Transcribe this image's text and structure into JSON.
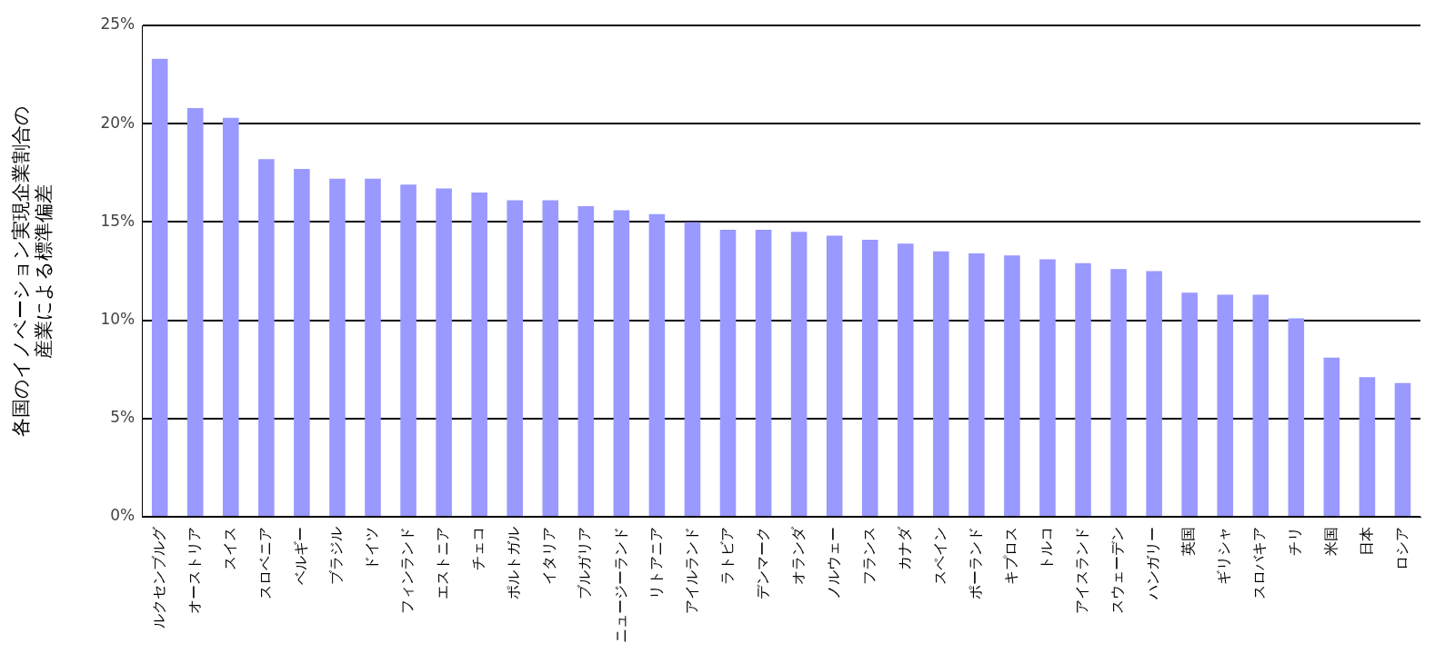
{
  "chart_data": {
    "type": "bar",
    "ylabel": "各国のイノベーション実現企業割合の産業による標準偏差",
    "categories": [
      "ルクセンブルグ",
      "オーストリア",
      "スイス",
      "スロベニア",
      "ベルギー",
      "ブラジル",
      "ドイツ",
      "フィンランド",
      "エストニア",
      "チェコ",
      "ポルトガル",
      "イタリア",
      "ブルガリア",
      "ニュージーランド",
      "リトアニア",
      "アイルランド",
      "ラトビア",
      "デンマーク",
      "オランダ",
      "ノルウェー",
      "フランス",
      "カナダ",
      "スペイン",
      "ポーランド",
      "キプロス",
      "トルコ",
      "アイスランド",
      "スウェーデン",
      "ハンガリー",
      "英国",
      "ギリシャ",
      "スロバキア",
      "チリ",
      "米国",
      "日本",
      "ロシア"
    ],
    "values": [
      23.3,
      20.8,
      20.3,
      18.2,
      17.7,
      17.2,
      17.2,
      16.9,
      16.7,
      16.5,
      16.1,
      16.1,
      15.8,
      15.6,
      15.4,
      15.0,
      14.6,
      14.6,
      14.5,
      14.3,
      14.1,
      13.9,
      13.5,
      13.4,
      13.3,
      13.1,
      12.9,
      12.6,
      12.5,
      11.4,
      11.3,
      11.3,
      10.1,
      8.1,
      7.1,
      6.8
    ],
    "color": "#9999ff",
    "ylim": [
      0,
      25
    ],
    "yticks": [
      {
        "value": 0,
        "label": "0%"
      },
      {
        "value": 5,
        "label": "5%"
      },
      {
        "value": 10,
        "label": "10%"
      },
      {
        "value": 15,
        "label": "15%"
      },
      {
        "value": 20,
        "label": "20%"
      },
      {
        "value": 25,
        "label": "25%"
      }
    ],
    "grid": "y",
    "legend": false
  }
}
